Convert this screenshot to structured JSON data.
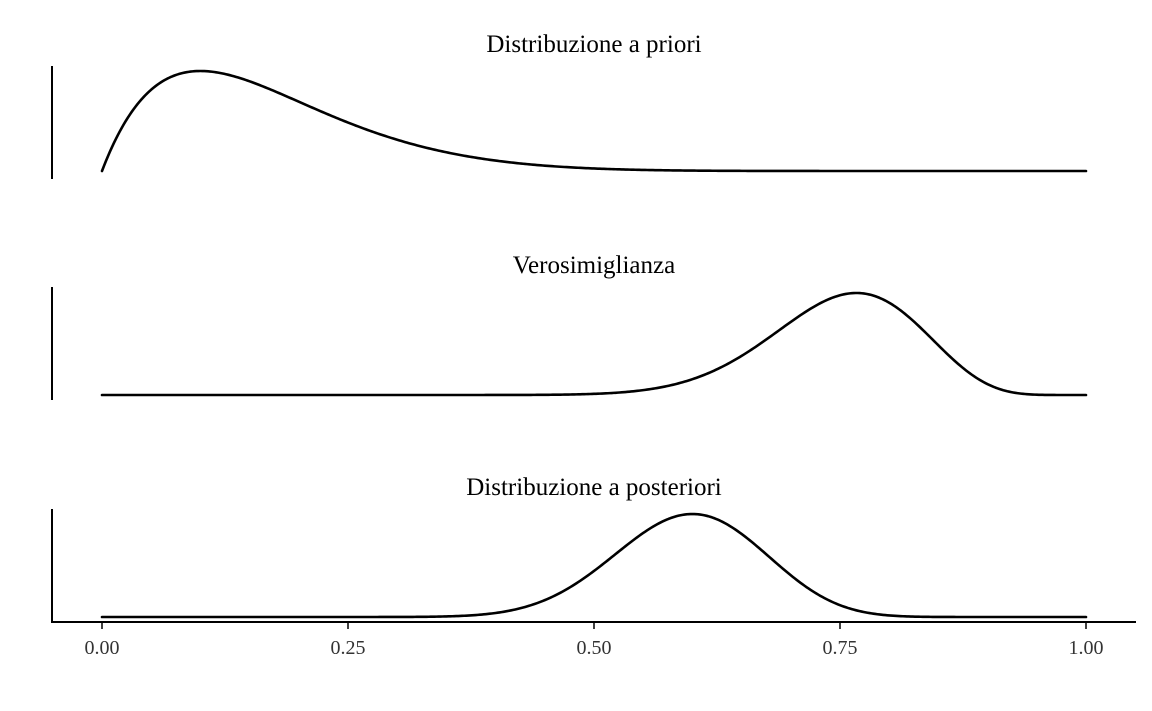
{
  "chart_data": [
    {
      "type": "line",
      "title": "Distribuzione a priori",
      "distribution": {
        "family": "beta",
        "alpha": 2,
        "beta": 10
      },
      "xlim": [
        0,
        1
      ],
      "color": "#000000"
    },
    {
      "type": "line",
      "title": "Verosimiglianza",
      "distribution": {
        "family": "binomial",
        "successes": 23,
        "trials": 30
      },
      "xlim": [
        0,
        1
      ],
      "color": "#000000"
    },
    {
      "type": "line",
      "title": "Distribuzione a posteriori",
      "distribution": {
        "family": "beta",
        "alpha": 25,
        "beta": 17
      },
      "xlim": [
        0,
        1
      ],
      "xticks": [
        0,
        0.25,
        0.5,
        0.75,
        1
      ],
      "xtick_labels": [
        "0.00",
        "0.25",
        "0.50",
        "0.75",
        "1.00"
      ],
      "color": "#000000"
    }
  ]
}
